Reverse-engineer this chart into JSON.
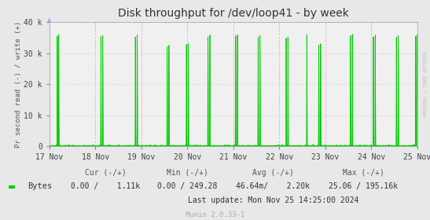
{
  "title": "Disk throughput for /dev/loop41 - by week",
  "ylabel": "Pr second read (-) / write (+)",
  "background_color": "#e8e8e8",
  "plot_bg_color": "#f0f0f0",
  "line_color": "#00cc00",
  "ylim": [
    0,
    40000
  ],
  "yticks": [
    0,
    10000,
    20000,
    30000,
    40000
  ],
  "ytick_labels": [
    "0",
    "10 k",
    "20 k",
    "30 k",
    "40 k"
  ],
  "x_start": 0,
  "x_end": 8,
  "xtick_positions": [
    0,
    1,
    2,
    3,
    4,
    5,
    6,
    7,
    8
  ],
  "xtick_labels": [
    "17 Nov",
    "18 Nov",
    "19 Nov",
    "20 Nov",
    "21 Nov",
    "22 Nov",
    "23 Nov",
    "24 Nov",
    "25 Nov"
  ],
  "watermark": "RRDTOOL / TOBI OETIKER",
  "footer_legend_color": "#00cc00",
  "footer_label": "Bytes",
  "footer_cur_header": "Cur (-/+)",
  "footer_cur_val": "0.00 /    1.11k",
  "footer_min_header": "Min (-/+)",
  "footer_min_val": "0.00 / 249.28",
  "footer_avg_header": "Avg (-/+)",
  "footer_avg_val": "46.64m/    2.20k",
  "footer_max_header": "Max (-/+)",
  "footer_max_val": "25.06 / 195.16k",
  "footer_last_update": "Last update: Mon Nov 25 14:25:00 2024",
  "munin_version": "Munin 2.0.33-1"
}
